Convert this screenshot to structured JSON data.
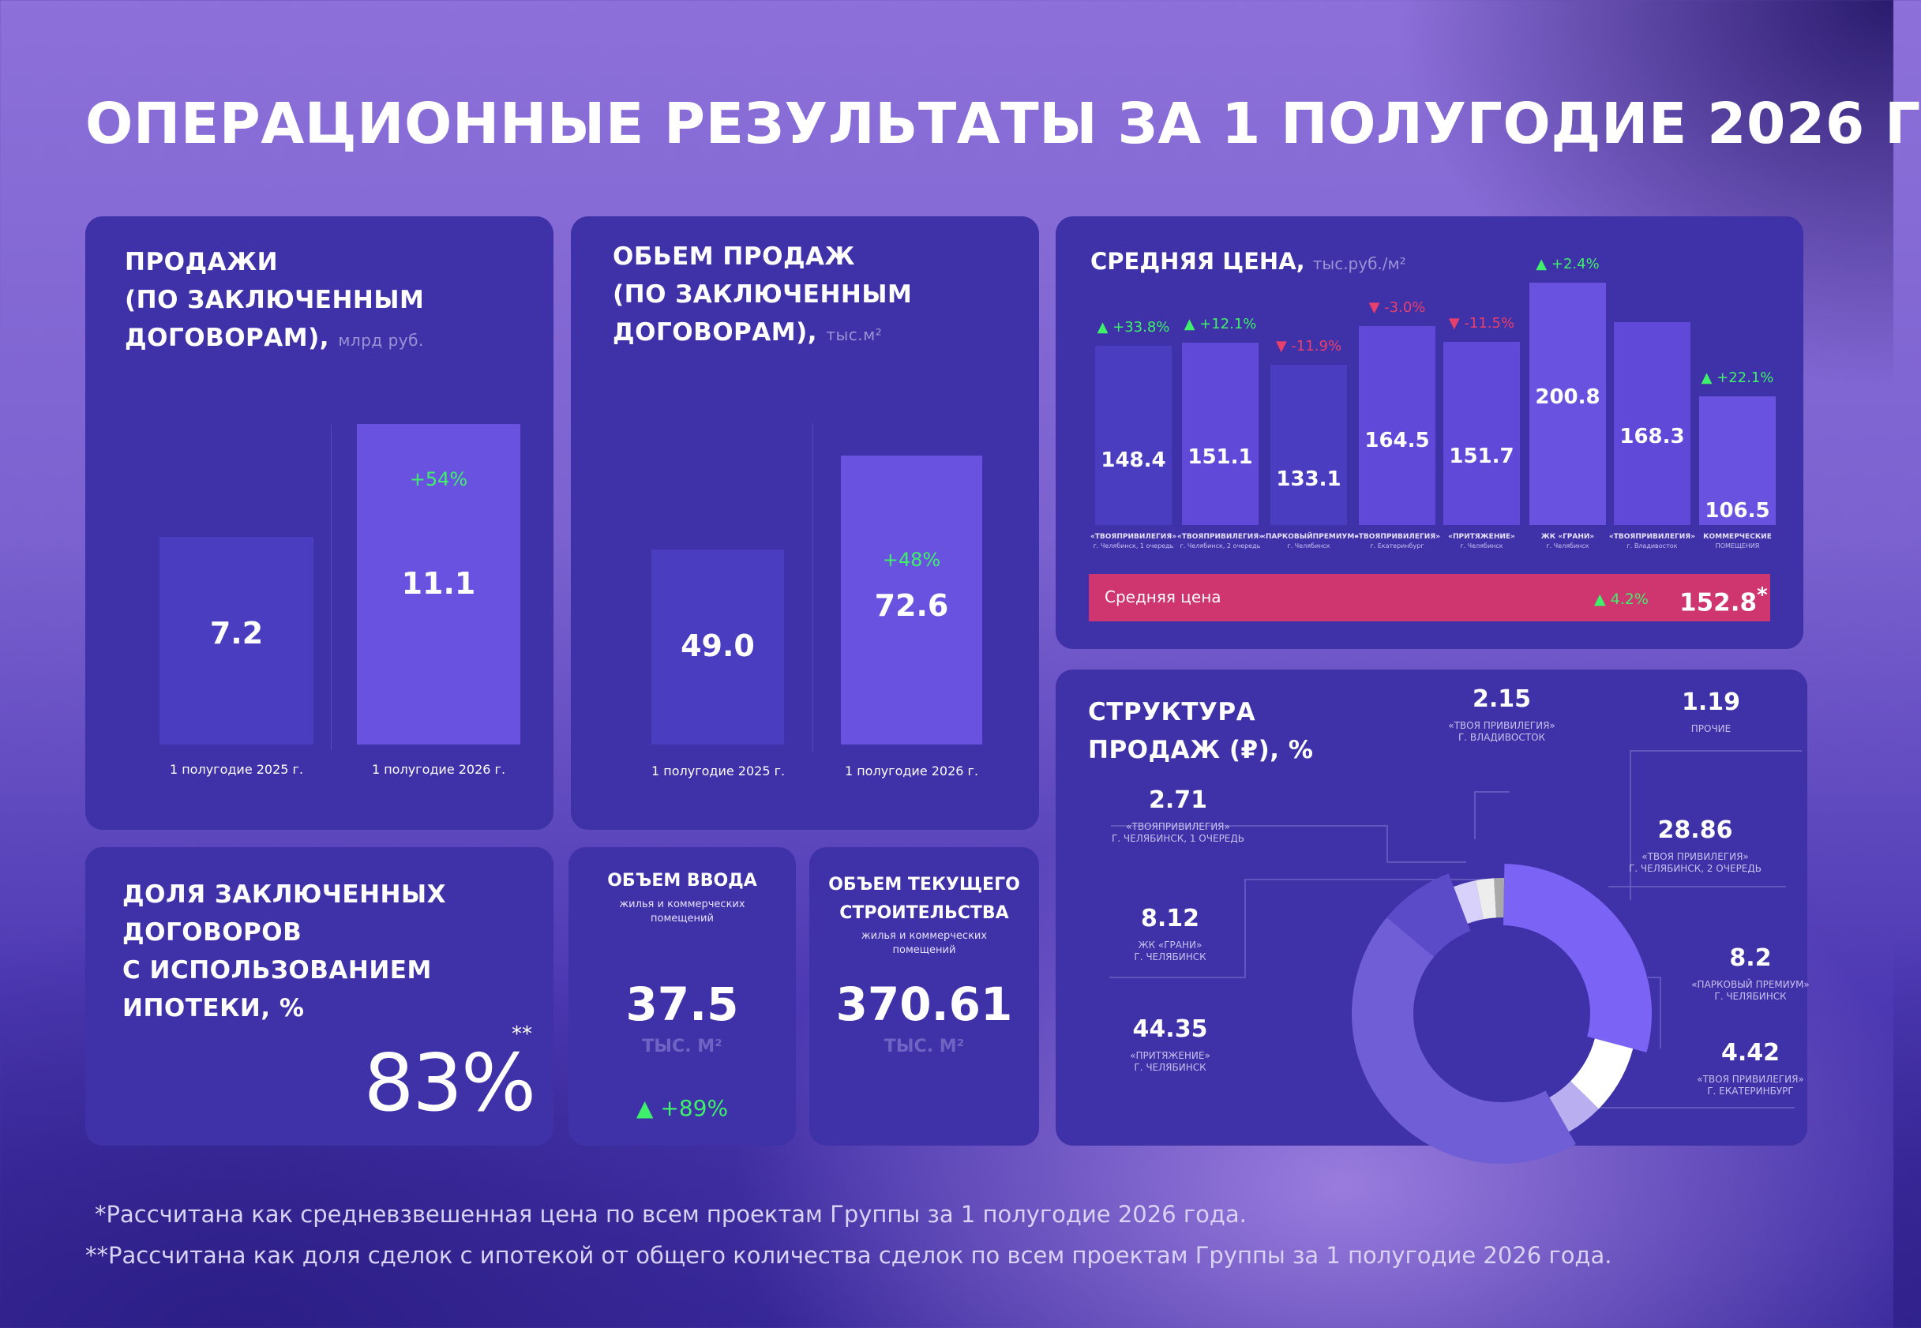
{
  "title": "ОПЕРАЦИОННЫЕ РЕЗУЛЬТАТЫ ЗА 1 ПОЛУГОДИЕ  2026 Г",
  "sales": {
    "title_l1": "ПРОДАЖИ",
    "title_l2": "(ПО ЗАКЛЮЧЕННЫМ",
    "title_l3": "ДОГОВОРАМ),",
    "unit": "млрд руб.",
    "change": "+54%"
  },
  "volume": {
    "title_l1": "ОБЬЕМ ПРОДАЖ",
    "title_l2": "(ПО ЗАКЛЮЧЕННЫМ",
    "title_l3": "ДОГОВОРАМ),",
    "unit": "тыс.м²",
    "change": "+48%"
  },
  "avg_price": {
    "title": "СРЕДНЯЯ ЦЕНА,",
    "unit": "тыс.руб./м²",
    "total_label": "Средняя цена",
    "total_change": "▲ 4.2%",
    "total_value": "152.8",
    "total_star": "*"
  },
  "mortgage": {
    "title_l1": "ДОЛЯ ЗАКЛЮЧЕННЫХ",
    "title_l2": "ДОГОВОРОВ",
    "title_l3": "С ИСПОЛЬЗОВАНИЕМ",
    "title_l4": "ИПОТЕКИ, %",
    "value": "83%",
    "stars": "**"
  },
  "commissioning": {
    "title": "ОБЪЕМ ВВОДА",
    "subtitle_l1": "жилья и коммерческих",
    "subtitle_l2": "помещений",
    "value": "37.5",
    "unit": "ТЫС. М²",
    "change": "▲ +89%"
  },
  "construction": {
    "title_l1": "ОБЪЕМ ТЕКУЩЕГО",
    "title_l2": "СТРОИТЕЛЬСТВА",
    "subtitle_l1": "жилья и коммерческих",
    "subtitle_l2": "помещений",
    "value": "370.61",
    "unit": "ТЫС. М²"
  },
  "structure": {
    "title_l1": "СТРУКТУРА",
    "title_l2": "ПРОДАЖ (₽), %"
  },
  "footnotes": {
    "f1": "*Рассчитана как средневзвешенная цена по всем проектам Группы за 1 полугодие 2026 года.",
    "f2": "**Рассчитана как доля сделок с ипотекой от общего количества сделок по всем проектам Группы за 1 полугодие 2026 года."
  },
  "colors": {
    "card": "#3f31a8",
    "bar_prev": "#4a3dbf",
    "bar_curr": "#6a52e0",
    "positive": "#3ef06a",
    "negative": "#e8406c",
    "avg_bar": "#cf3670"
  },
  "chart_data": [
    {
      "type": "bar",
      "categories": [
        "1 полугодие 2025 г.",
        "1 полугодие 2026 г."
      ],
      "values": [
        7.2,
        11.1
      ],
      "value_labels": [
        "7.2",
        "11.1"
      ]
    },
    {
      "type": "bar",
      "categories": [
        "1 полугодие 2025 г.",
        "1 полугодие 2026 г."
      ],
      "values": [
        49.0,
        72.6
      ],
      "value_labels": [
        "49.0",
        "72.6"
      ]
    },
    {
      "type": "bar",
      "categories": [
        [
          "«ТВОЯПРИВИЛЕГИЯ»",
          "г. Челябинск, 1 очередь"
        ],
        [
          "«ТВОЯПРИВИЛЕГИЯ»",
          "г. Челябинск, 2 очередь"
        ],
        [
          "«ПАРКОВЫЙПРЕМИУМ»",
          "г. Челябинск"
        ],
        [
          "«ТВОЯПРИВИЛЕГИЯ»",
          "г. Екатеринбург"
        ],
        [
          "«ПРИТЯЖЕНИЕ»",
          "г. Челябинск"
        ],
        [
          "ЖК «ГРАНИ»",
          "г. Челябинск"
        ],
        [
          "«ТВОЯПРИВИЛЕГИЯ»",
          "г. Владивосток"
        ],
        [
          "КОММЕРЧЕСКИЕ",
          "ПОМЕЩЕНИЯ"
        ]
      ],
      "values": [
        148.4,
        151.1,
        133.1,
        164.5,
        151.7,
        200.8,
        168.3,
        106.5
      ],
      "value_labels": [
        "148.4",
        "151.1",
        "133.1",
        "164.5",
        "151.7",
        "200.8",
        "168.3",
        "106.5"
      ],
      "changes": [
        "▲ +33.8%",
        "▲ +12.1%",
        "▼ -11.9%",
        "▼ -3.0%",
        "▼ -11.5%",
        "▲ +2.4%",
        "",
        "▲ +22.1%"
      ],
      "change_positive": [
        true,
        true,
        false,
        false,
        false,
        true,
        true,
        true
      ]
    },
    {
      "type": "pie",
      "slices": [
        {
          "value": 28.86,
          "label": "28.86",
          "name": [
            "«ТВОЯ ПРИВИЛЕГИЯ»",
            "Г. ЧЕЛЯБИНСК, 2 ОЧЕРЕДЬ"
          ],
          "color": "#7b63f5"
        },
        {
          "value": 8.2,
          "label": "8.2",
          "name": [
            "«ПАРКОВЫЙ ПРЕМИУМ»",
            "Г. ЧЕЛЯБИНСК"
          ],
          "color": "#ffffff"
        },
        {
          "value": 4.42,
          "label": "4.42",
          "name": [
            "«ТВОЯ ПРИВИЛЕГИЯ»",
            "Г. ЕКАТЕРИНБУРГ"
          ],
          "color": "#b8aef0"
        },
        {
          "value": 44.35,
          "label": "44.35",
          "name": [
            "«ПРИТЯЖЕНИЕ»",
            "Г. ЧЕЛЯБИНСК"
          ],
          "color": "#6f5ed6"
        },
        {
          "value": 8.12,
          "label": "8.12",
          "name": [
            "ЖК «ГРАНИ»",
            "Г. ЧЕЛЯБИНСК"
          ],
          "color": "#5b4bc9"
        },
        {
          "value": 2.71,
          "label": "2.71",
          "name": [
            "«ТВОЯПРИВИЛЕГИЯ»",
            "Г. ЧЕЛЯБИНСК, 1 ОЧЕРЕДЬ"
          ],
          "color": "#d7d1fb"
        },
        {
          "value": 2.15,
          "label": "2.15",
          "name": [
            "«ТВОЯ ПРИВИЛЕГИЯ»",
            "Г. ВЛАДИВОСТОК"
          ],
          "color": "#ededed"
        },
        {
          "value": 1.19,
          "label": "1.19",
          "name": [
            "ПРОЧИЕ"
          ],
          "color": "#a9a9a9"
        }
      ]
    }
  ]
}
